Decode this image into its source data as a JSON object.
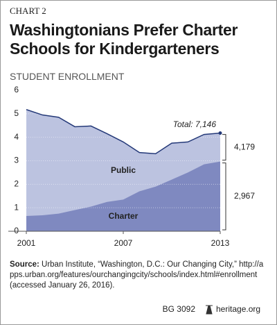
{
  "chart_label": "CHART 2",
  "chart_data": {
    "type": "area",
    "title": "Washingtonians Prefer Charter Schools for Kindergarteners",
    "subtitle": "STUDENT ENROLLMENT",
    "x": [
      2001,
      2002,
      2003,
      2004,
      2005,
      2006,
      2007,
      2008,
      2009,
      2010,
      2011,
      2012,
      2013
    ],
    "xlim": [
      2001,
      2013
    ],
    "xticks": [
      2001,
      2007,
      2013
    ],
    "ylim": [
      0,
      6
    ],
    "yticks": [
      0,
      1,
      2,
      3,
      4,
      5,
      6
    ],
    "grid": true,
    "series": [
      {
        "name": "Public",
        "color": "#bcc3e0",
        "line_color": "#243978",
        "values": [
          5.18,
          4.95,
          4.85,
          4.45,
          4.48,
          4.15,
          3.8,
          3.35,
          3.3,
          3.75,
          3.8,
          4.12,
          4.179
        ],
        "value_labels": [
          null,
          null,
          null,
          null,
          null,
          null,
          null,
          null,
          null,
          null,
          null,
          null,
          "4,179"
        ]
      },
      {
        "name": "Charter",
        "color": "#7f89c0",
        "values": [
          0.65,
          0.68,
          0.75,
          0.9,
          1.05,
          1.25,
          1.35,
          1.7,
          1.9,
          2.2,
          2.5,
          2.85,
          2.967
        ],
        "value_labels": [
          null,
          null,
          null,
          null,
          null,
          null,
          null,
          null,
          null,
          null,
          null,
          null,
          "2,967"
        ]
      }
    ],
    "annotation": "Total: 7,146"
  },
  "source": {
    "label": "Source:",
    "text": "Urban Institute, “Washington, D.C.: Our Changing City,” http://apps.urban.org/features/ourchangingcity/schools/index.html#enrollment (accessed January 26, 2016)."
  },
  "footer": {
    "id": "BG 3092",
    "site": "heritage.org"
  }
}
